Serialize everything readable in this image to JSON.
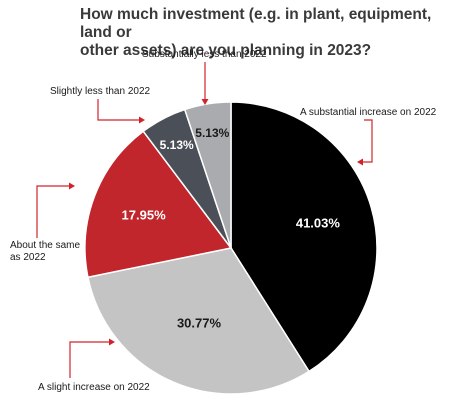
{
  "title_lines": [
    "How much investment (e.g. in plant, equipment, land or",
    "other assets) are you planning in 2023?"
  ],
  "chart_data": {
    "type": "pie",
    "title": "How much investment (e.g. in plant, equipment, land or other assets) are you planning in 2023?",
    "slices": [
      {
        "label": "A substantial increase on 2022",
        "value": 41.03,
        "display": "41.03%",
        "color": "#000000",
        "text_color": "#ffffff"
      },
      {
        "label": "A slight increase on 2022",
        "value": 30.77,
        "display": "30.77%",
        "color": "#c4c4c4",
        "text_color": "#1a1a1a"
      },
      {
        "label": "About the same as 2022",
        "value": 17.95,
        "display": "17.95%",
        "color": "#c0262c",
        "text_color": "#ffffff"
      },
      {
        "label": "Slightly less than 2022",
        "value": 5.13,
        "display": "5.13%",
        "color": "#4b4f57",
        "text_color": "#ffffff"
      },
      {
        "label": "Substantially less than 2022",
        "value": 5.13,
        "display": "5.13%",
        "color": "#a9abae",
        "text_color": "#1a1a1a"
      }
    ],
    "start_angle_deg": 0,
    "direction": "clockwise",
    "legend": "callouts with arrows"
  },
  "callouts": {
    "substantial_increase": [
      "A substantial increase on 2022"
    ],
    "slight_increase": [
      "A slight increase on 2022"
    ],
    "about_same": [
      "About the same",
      "as 2022"
    ],
    "slightly_less": [
      "Slightly less than 2022"
    ],
    "substantially_less": [
      "Substantially less than 2022"
    ]
  },
  "colors": {
    "arrow": "#d0242b",
    "title": "#3a3a3a"
  }
}
